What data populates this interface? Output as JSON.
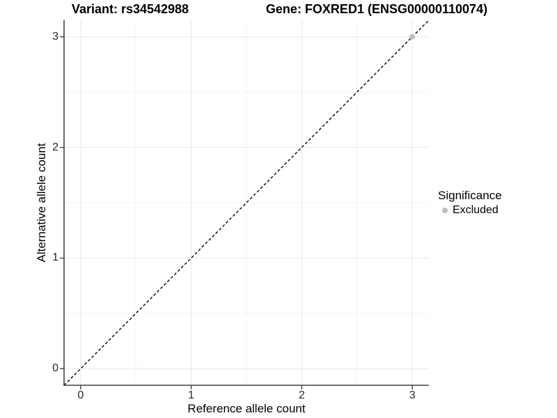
{
  "chart_data": {
    "type": "scatter",
    "title_left": "Variant: rs34542988",
    "title_right": "Gene: FOXRED1 (ENSG00000110074)",
    "xlabel": "Reference allele count",
    "ylabel": "Alternative allele count",
    "xlim": [
      -0.15,
      3.15
    ],
    "ylim": [
      -0.15,
      3.15
    ],
    "xticks": [
      0,
      1,
      2,
      3
    ],
    "yticks": [
      0,
      1,
      2,
      3
    ],
    "xminor": [
      0.5,
      1.5,
      2.5
    ],
    "yminor": [
      0.5,
      1.5,
      2.5
    ],
    "grid": "major+minor",
    "reference_line": {
      "type": "identity",
      "style": "dashed",
      "color": "#000000"
    },
    "series": [
      {
        "name": "Excluded",
        "color": "#bdbdbd",
        "points": [
          {
            "x": 3,
            "y": 3
          }
        ]
      }
    ],
    "legend": {
      "title": "Significance",
      "position": "right",
      "items": [
        {
          "label": "Excluded",
          "color": "#bdbdbd"
        }
      ]
    }
  },
  "colors": {
    "background": "#ffffff",
    "grid_major": "#e8e8e8",
    "grid_minor": "#f3f3f3",
    "axis_line": "#404040",
    "tick_text": "#262626",
    "dashed_line": "#000000"
  }
}
